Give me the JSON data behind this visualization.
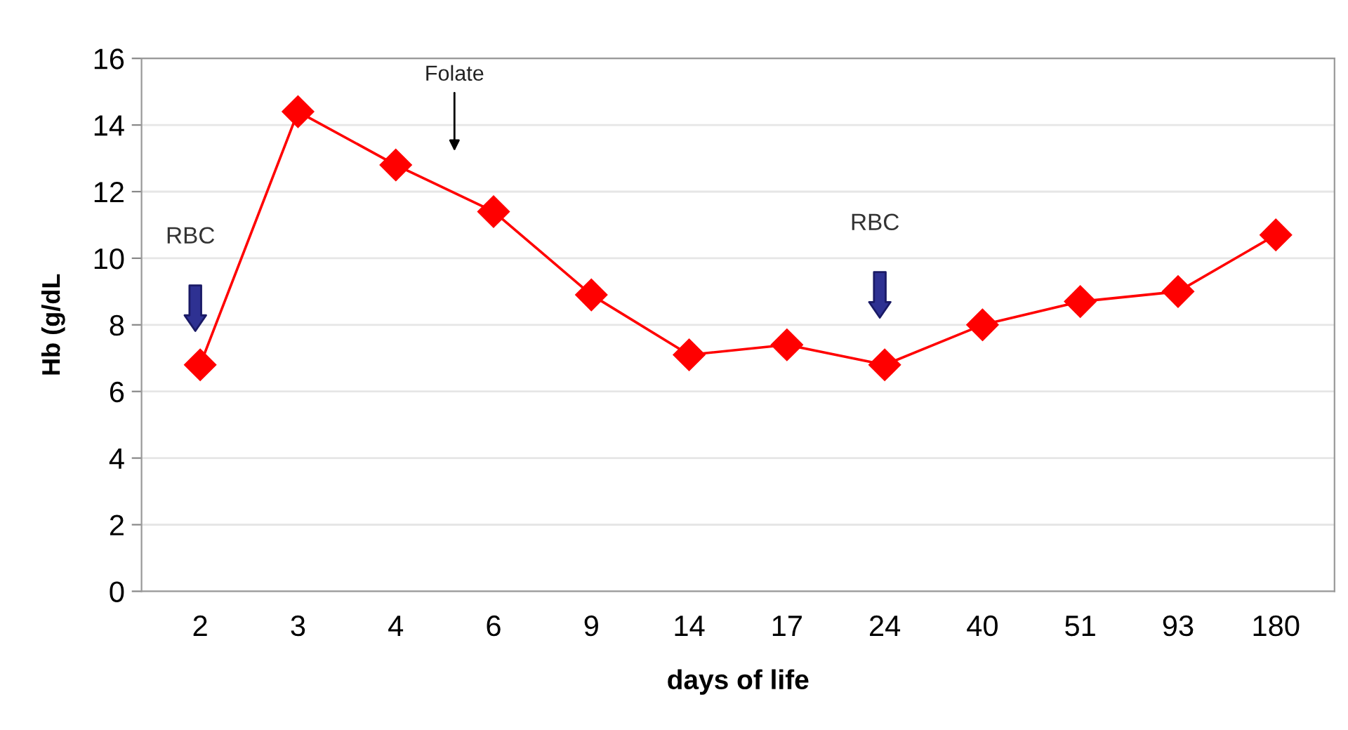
{
  "chart_data": {
    "type": "line",
    "xlabel": "days of life",
    "ylabel": "Hb (g/dL",
    "categories": [
      "2",
      "3",
      "4",
      "6",
      "9",
      "14",
      "17",
      "24",
      "40",
      "51",
      "93",
      "180"
    ],
    "series": [
      {
        "color": "#ff0000",
        "values": [
          6.8,
          14.4,
          12.8,
          11.4,
          8.9,
          7.1,
          7.4,
          6.8,
          8.0,
          8.7,
          9.0,
          10.7
        ]
      }
    ],
    "ylim": [
      0,
      16
    ],
    "yticks": [
      0,
      2,
      4,
      6,
      8,
      10,
      12,
      14,
      16
    ],
    "grid": "y",
    "marker": "diamond",
    "line_style": "solid",
    "legend": false,
    "annotations": [
      "RBC",
      "Folate",
      "RBC"
    ]
  }
}
